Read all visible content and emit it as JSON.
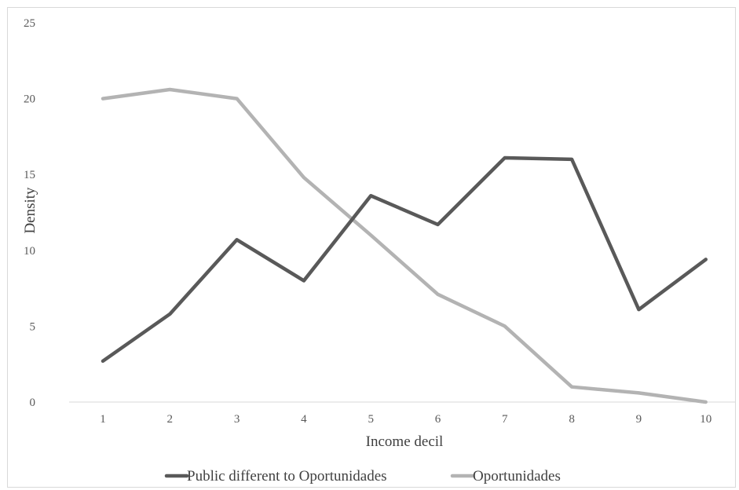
{
  "chart_data": {
    "type": "line",
    "title": "",
    "xlabel": "Income decil",
    "ylabel": "Density",
    "x": [
      1,
      2,
      3,
      4,
      5,
      6,
      7,
      8,
      9,
      10
    ],
    "ylim": [
      0,
      25
    ],
    "yticks": [
      0,
      5,
      10,
      15,
      20,
      25
    ],
    "grid": false,
    "legend_position": "bottom",
    "series": [
      {
        "name": "Public different to Oportunidades",
        "color": "#595959",
        "values": [
          2.7,
          5.8,
          10.7,
          8.0,
          13.6,
          11.7,
          16.1,
          16.0,
          6.1,
          9.4
        ]
      },
      {
        "name": "Oportunidades",
        "color": "#b3b3b3",
        "values": [
          20.0,
          20.6,
          20.0,
          14.8,
          11.0,
          7.1,
          5.0,
          1.0,
          0.6,
          0.0
        ]
      }
    ]
  }
}
